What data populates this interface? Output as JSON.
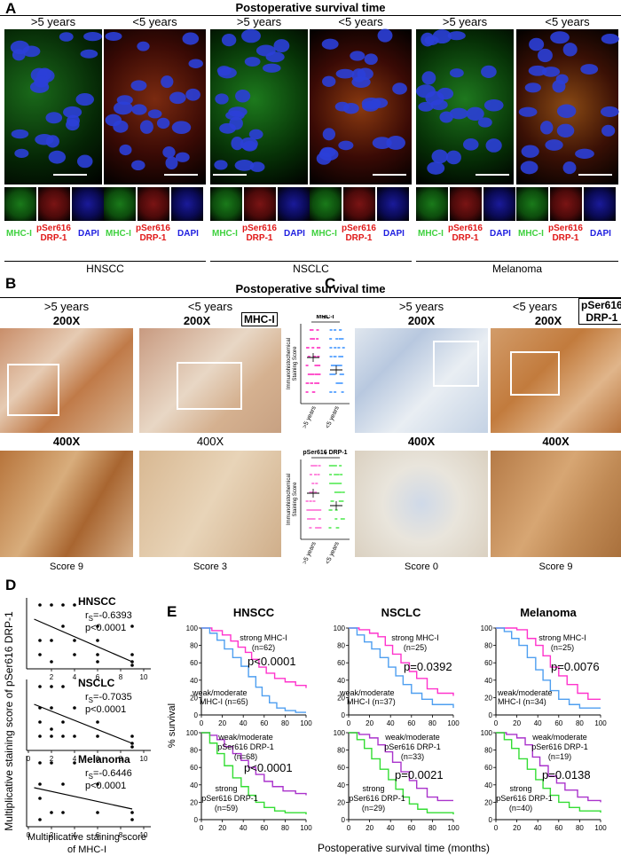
{
  "panelA": {
    "label": "A",
    "header": "Postoperative survival time",
    "col_labels": [
      ">5 years",
      "<5 years",
      ">5 years",
      "<5 years",
      ">5 years",
      "<5 years"
    ],
    "stain_labels": {
      "mhc": "MHC-I",
      "drp1_line1": "pSer616",
      "drp1_line2": "DRP-1",
      "dapi": "DAPI"
    },
    "groups": [
      "HNSCC",
      "NSCLC",
      "Melanoma"
    ]
  },
  "panelB": {
    "label": "B",
    "header": "Postoperative survival time",
    "col_labels": [
      ">5 years",
      "<5 years"
    ],
    "mag_top": [
      "200X",
      "200X"
    ],
    "mag_bottom": [
      "400X",
      "400X"
    ],
    "marker_box": "MHC-I",
    "scores": [
      "Score 9",
      "Score 3"
    ]
  },
  "panelC": {
    "label": "C",
    "col_labels": [
      ">5 years",
      "<5 years"
    ],
    "mag_top": [
      "200X",
      "200X"
    ],
    "mag_bottom": [
      "400X",
      "400X"
    ],
    "marker_box": [
      "pSer616",
      "DRP-1"
    ],
    "scores": [
      "Score 0",
      "Score 9"
    ]
  },
  "dotplots": {
    "ylabel_line1": "Immunohistochemical",
    "ylabel_line2": "Staining Score",
    "xcats": [
      ">5 years",
      "<5 years"
    ],
    "top": {
      "title": "MHC-I",
      "sig": "**",
      "color_a": "#ff55cc",
      "color_b": "#66aaff"
    },
    "bottom": {
      "title": "pSer616 DRP-1",
      "sig": "*",
      "color_a": "#ff88dd",
      "color_b": "#77ee77"
    }
  },
  "panelD": {
    "label": "D",
    "ylabel_line1": "Multiplicative staining score of pSer616 DRP-1",
    "xlabel_line1": "Multiplicative staining score",
    "xlabel_line2": "of MHC-I",
    "xticks": [
      "0",
      "2",
      "4",
      "6",
      "8",
      "10"
    ],
    "xticks_top": [
      "2",
      "4",
      "6",
      "8",
      "10"
    ],
    "yticks": [
      "0",
      "5",
      "10"
    ],
    "rs_prefix": "r",
    "rs_sub": "S",
    "plots": [
      {
        "name": "HNSCC",
        "rs": "=-0.6393",
        "p": "p<0.0001"
      },
      {
        "name": "NSCLC",
        "rs": "=-0.7035",
        "p": "p<0.0001"
      },
      {
        "name": "Melanoma",
        "rs": "=-0.6446",
        "p": "p<0.0001"
      }
    ]
  },
  "panelE": {
    "label": "E",
    "ylabel": "% survival",
    "xlabel": "Postoperative survival time (months)",
    "xticks": [
      "0",
      "20",
      "40",
      "60",
      "80",
      "100"
    ],
    "yticks": [
      "0",
      "20",
      "40",
      "60",
      "80",
      "100"
    ],
    "titles": [
      "HNSCC",
      "NSCLC",
      "Melanoma"
    ],
    "colors": {
      "strong_mhc": "#ff33cc",
      "weak_mhc": "#4f9ff0",
      "weak_drp": "#aa33cc",
      "strong_drp": "#33dd33"
    },
    "top_row": [
      {
        "strong": [
          "strong MHC-I",
          "(n=62)"
        ],
        "weak": [
          "weak/moderate",
          "MHC-I (n=65)"
        ],
        "p": "p<0.0001"
      },
      {
        "strong": [
          "strong MHC-I",
          "(n=25)"
        ],
        "weak": [
          "weak/moderate",
          "MHC-I (n=37)"
        ],
        "p": "p=0.0392"
      },
      {
        "strong": [
          "strong MHC-I",
          "(n=25)"
        ],
        "weak": [
          "weak/moderate",
          "MHC-I (n=34)"
        ],
        "p": "p=0.0076"
      }
    ],
    "bottom_row": [
      {
        "weak": [
          "weak/moderate",
          "pSer616 DRP-1",
          "(n=68)"
        ],
        "strong": [
          "strong",
          "pSer616 DRP-1",
          "(n=59)"
        ],
        "p": "p<0.0001"
      },
      {
        "weak": [
          "weak/moderate",
          "pSer616 DRP-1",
          "(n=33)"
        ],
        "strong": [
          "strong",
          "pSer616 DRP-1",
          "(n=29)"
        ],
        "p": "p=0.0021"
      },
      {
        "weak": [
          "weak/moderate",
          "pSer616 DRP-1",
          "(n=19)"
        ],
        "strong": [
          "strong",
          "pSer616 DRP-1",
          "(n=40)"
        ],
        "p": "p=0.0138"
      }
    ]
  }
}
